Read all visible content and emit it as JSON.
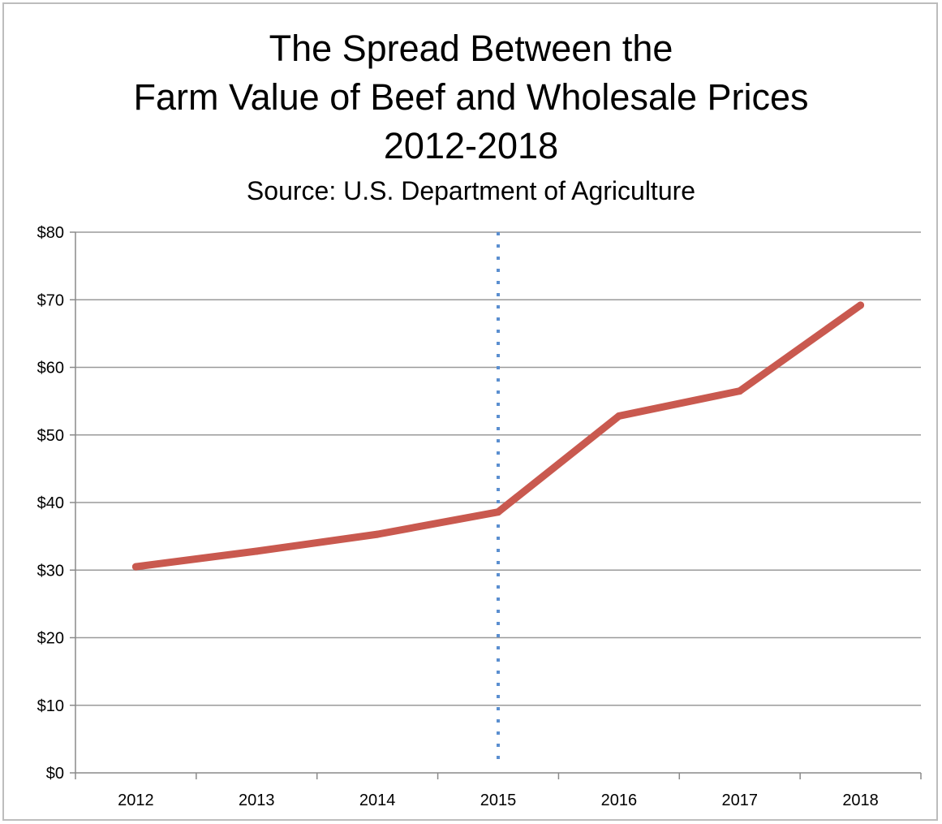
{
  "chart_data": {
    "type": "line",
    "title_lines": [
      "The Spread Between the",
      "Farm Value of Beef and Wholesale Prices",
      "2012-2018"
    ],
    "subtitle": "Source: U.S. Department of Agriculture",
    "categories": [
      "2012",
      "2013",
      "2014",
      "2015",
      "2016",
      "2017",
      "2018"
    ],
    "series": [
      {
        "values": [
          30.5,
          32.8,
          35.3,
          38.6,
          52.8,
          56.5,
          69.2
        ],
        "color": "#c9594f"
      }
    ],
    "y_tick_labels": [
      "$0",
      "$10",
      "$20",
      "$30",
      "$40",
      "$50",
      "$60",
      "$70",
      "$80"
    ],
    "ylim": [
      0,
      80
    ],
    "grid": true,
    "marker_line": {
      "at": "2015",
      "style": "dotted",
      "color": "#5b8fd0"
    }
  }
}
